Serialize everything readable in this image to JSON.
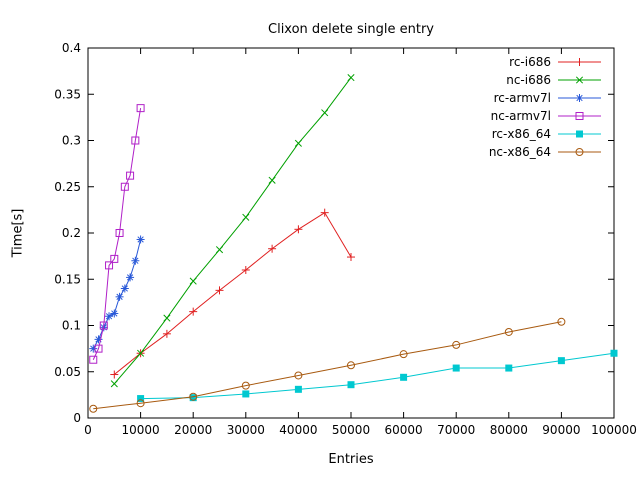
{
  "chart_data": {
    "type": "line",
    "title": "Clixon delete single entry",
    "xlabel": "Entries",
    "ylabel": "Time[s]",
    "xlim": [
      0,
      100000
    ],
    "ylim": [
      0,
      0.4
    ],
    "grid": false,
    "legend_position": "top-right-inside",
    "xticks": [
      {
        "v": 0,
        "label": "0"
      },
      {
        "v": 10000,
        "label": "10000"
      },
      {
        "v": 20000,
        "label": "20000"
      },
      {
        "v": 30000,
        "label": "30000"
      },
      {
        "v": 40000,
        "label": "40000"
      },
      {
        "v": 50000,
        "label": "50000"
      },
      {
        "v": 60000,
        "label": "60000"
      },
      {
        "v": 70000,
        "label": "70000"
      },
      {
        "v": 80000,
        "label": "80000"
      },
      {
        "v": 90000,
        "label": "90000"
      },
      {
        "v": 100000,
        "label": "100000"
      }
    ],
    "yticks": [
      {
        "v": 0,
        "label": "0"
      },
      {
        "v": 0.05,
        "label": "0.05"
      },
      {
        "v": 0.1,
        "label": "0.1"
      },
      {
        "v": 0.15,
        "label": "0.15"
      },
      {
        "v": 0.2,
        "label": "0.2"
      },
      {
        "v": 0.25,
        "label": "0.25"
      },
      {
        "v": 0.3,
        "label": "0.3"
      },
      {
        "v": 0.35,
        "label": "0.35"
      },
      {
        "v": 0.4,
        "label": "0.4"
      }
    ],
    "series": [
      {
        "name": "rc-i686",
        "color": "#e02020",
        "marker": "plus",
        "x": [
          5000,
          10000,
          15000,
          20000,
          25000,
          30000,
          35000,
          40000,
          45000,
          50000
        ],
        "y": [
          0.047,
          0.07,
          0.091,
          0.115,
          0.138,
          0.16,
          0.183,
          0.204,
          0.222,
          0.174
        ]
      },
      {
        "name": "nc-i686",
        "color": "#00a000",
        "marker": "cross",
        "x": [
          5000,
          10000,
          15000,
          20000,
          25000,
          30000,
          35000,
          40000,
          45000,
          50000
        ],
        "y": [
          0.037,
          0.07,
          0.108,
          0.148,
          0.182,
          0.217,
          0.257,
          0.297,
          0.33,
          0.368
        ]
      },
      {
        "name": "rc-armv7l",
        "color": "#2858d8",
        "marker": "asterisk",
        "x": [
          1000,
          2000,
          3000,
          4000,
          5000,
          6000,
          7000,
          8000,
          9000,
          10000
        ],
        "y": [
          0.075,
          0.085,
          0.098,
          0.11,
          0.113,
          0.131,
          0.14,
          0.152,
          0.17,
          0.193
        ]
      },
      {
        "name": "nc-armv7l",
        "color": "#b020c8",
        "marker": "square",
        "x": [
          1000,
          2000,
          3000,
          4000,
          5000,
          6000,
          7000,
          8000,
          9000,
          10000
        ],
        "y": [
          0.063,
          0.075,
          0.1,
          0.165,
          0.172,
          0.2,
          0.25,
          0.262,
          0.3,
          0.335
        ]
      },
      {
        "name": "rc-x86_64",
        "color": "#00c8d0",
        "marker": "square-filled",
        "x": [
          10000,
          20000,
          30000,
          40000,
          50000,
          60000,
          70000,
          80000,
          90000,
          100000
        ],
        "y": [
          0.021,
          0.022,
          0.026,
          0.031,
          0.036,
          0.044,
          0.054,
          0.054,
          0.062,
          0.07
        ]
      },
      {
        "name": "nc-x86_64",
        "color": "#a85a10",
        "marker": "circle",
        "x": [
          1000,
          10000,
          20000,
          30000,
          40000,
          50000,
          60000,
          70000,
          80000,
          90000
        ],
        "y": [
          0.01,
          0.016,
          0.023,
          0.035,
          0.046,
          0.057,
          0.069,
          0.079,
          0.093,
          0.104
        ]
      }
    ]
  }
}
